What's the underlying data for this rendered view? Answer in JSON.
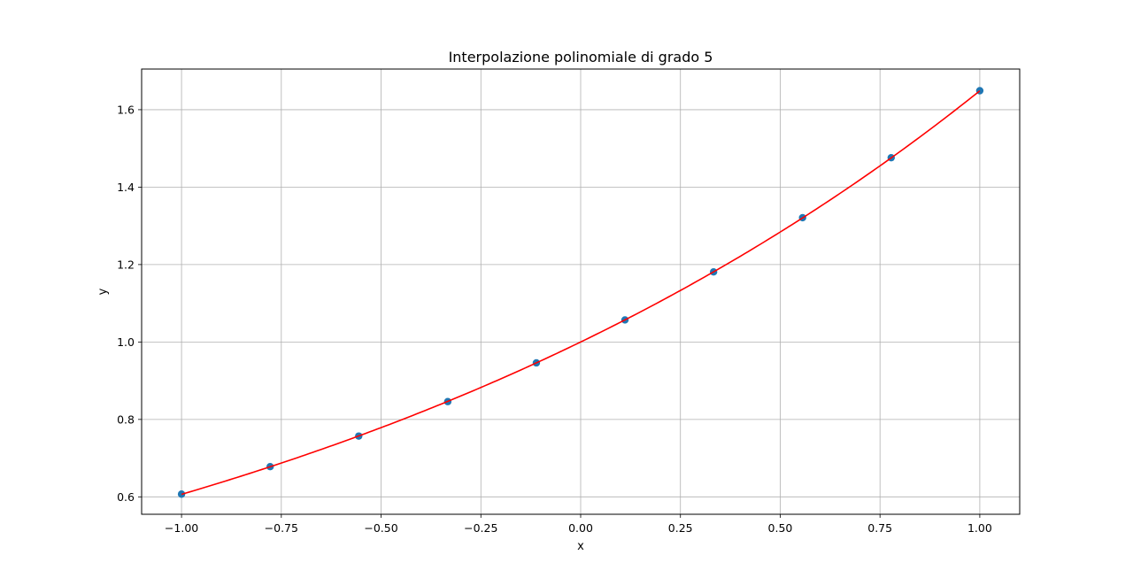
{
  "chart_data": {
    "type": "line",
    "title": "Interpolazione polinomiale di grado 5",
    "xlabel": "x",
    "ylabel": "y",
    "xlim": [
      -1.1,
      1.1
    ],
    "ylim": [
      0.555,
      1.705
    ],
    "xticks": [
      -1.0,
      -0.75,
      -0.5,
      -0.25,
      0.0,
      0.25,
      0.5,
      0.75,
      1.0
    ],
    "xtick_labels": [
      "−1.00",
      "−0.75",
      "−0.50",
      "−0.25",
      "0.00",
      "0.25",
      "0.50",
      "0.75",
      "1.00"
    ],
    "yticks": [
      0.6,
      0.8,
      1.0,
      1.2,
      1.4,
      1.6
    ],
    "ytick_labels": [
      "0.6",
      "0.8",
      "1.0",
      "1.2",
      "1.4",
      "1.6"
    ],
    "grid": true,
    "series": [
      {
        "kind": "scatter",
        "color": "#1f77b4",
        "x": [
          -1.0,
          -0.778,
          -0.556,
          -0.333,
          -0.111,
          0.111,
          0.333,
          0.556,
          0.778,
          1.0
        ],
        "y": [
          0.607,
          0.678,
          0.757,
          0.846,
          0.946,
          1.057,
          1.181,
          1.321,
          1.476,
          1.649
        ]
      },
      {
        "kind": "line",
        "color": "#ff0000",
        "function": "polynomial",
        "coefficients": [
          1.0,
          0.5,
          0.125,
          0.0208333,
          0.0026042,
          0.00026042
        ]
      }
    ]
  }
}
